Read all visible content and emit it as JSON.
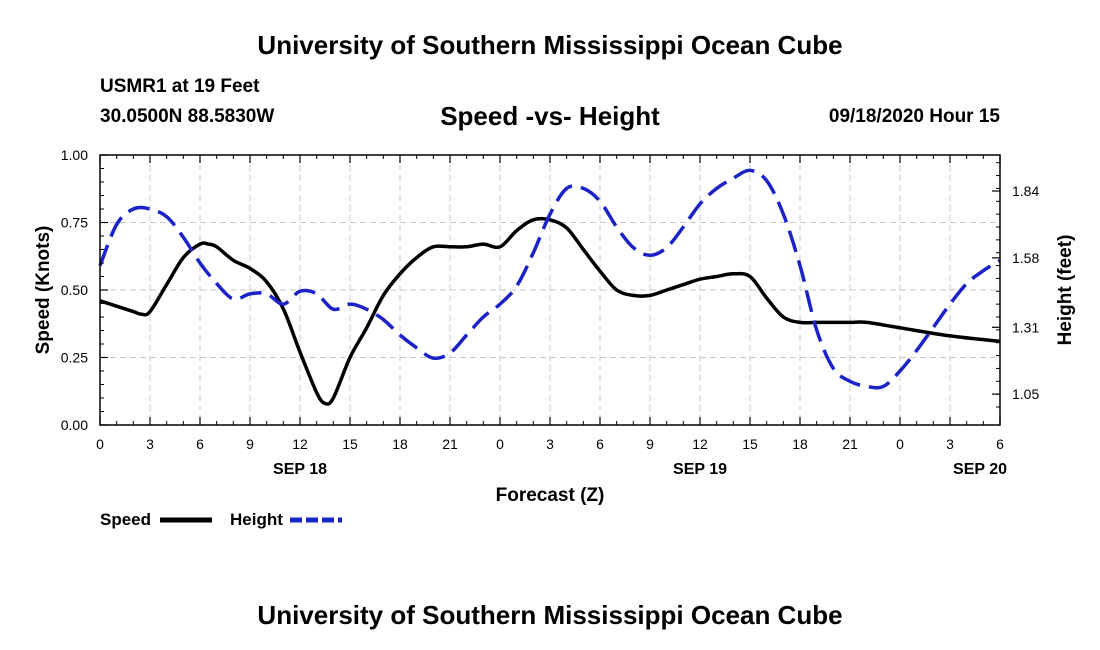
{
  "header": {
    "title": "University of Southern Mississippi Ocean Cube",
    "station": "USMR1 at 19 Feet",
    "coords": "30.0500N 88.5830W",
    "chart_title": "Speed -vs- Height",
    "datetime": "09/18/2020 Hour 15"
  },
  "footer": {
    "title": "University of Southern Mississippi Ocean Cube"
  },
  "chart_data": {
    "type": "line",
    "title": "Speed -vs- Height",
    "xlabel": "Forecast (Z)",
    "ylabel": "Speed (Knots)",
    "y2label": "Height (feet)",
    "x_range": [
      0,
      54
    ],
    "ylim": [
      0,
      1.0
    ],
    "y2lim": [
      0.93,
      1.98
    ],
    "x_ticks": [
      0,
      3,
      6,
      9,
      12,
      15,
      18,
      21,
      24,
      27,
      30,
      33,
      36,
      39,
      42,
      45,
      48,
      51,
      54
    ],
    "x_tick_labels": [
      "0",
      "3",
      "6",
      "9",
      "12",
      "15",
      "18",
      "21",
      "0",
      "3",
      "6",
      "9",
      "12",
      "15",
      "18",
      "21",
      "0",
      "3",
      "6"
    ],
    "date_labels": [
      {
        "x": 12,
        "label": "SEP 18"
      },
      {
        "x": 36,
        "label": "SEP 19"
      },
      {
        "x": 52.8,
        "label": "SEP 20"
      }
    ],
    "y_ticks": [
      0.0,
      0.25,
      0.5,
      0.75,
      1.0
    ],
    "y_tick_labels": [
      "0.00",
      "0.25",
      "0.50",
      "0.75",
      "1.00"
    ],
    "y2_ticks": [
      1.05,
      1.31,
      1.58,
      1.84
    ],
    "y2_tick_labels": [
      "1.05",
      "1.31",
      "1.58",
      "1.84"
    ],
    "grid": true,
    "legend": "bottom-left",
    "series": [
      {
        "name": "Speed",
        "axis": "left",
        "color": "#000000",
        "dash": "solid",
        "x": [
          0,
          1,
          2,
          2.5,
          3,
          4,
          5,
          6,
          6.5,
          7,
          8,
          9,
          10,
          11,
          12,
          13,
          13.5,
          14,
          15,
          16,
          17,
          18,
          19,
          20,
          21,
          22,
          23,
          24,
          25,
          26,
          27,
          28,
          29,
          30,
          31,
          32,
          33,
          34,
          35,
          36,
          37,
          38,
          39,
          40,
          41,
          42,
          43,
          44,
          45,
          46,
          48,
          51,
          54
        ],
        "values": [
          0.46,
          0.44,
          0.42,
          0.41,
          0.42,
          0.52,
          0.62,
          0.67,
          0.67,
          0.66,
          0.61,
          0.58,
          0.53,
          0.43,
          0.27,
          0.12,
          0.08,
          0.1,
          0.25,
          0.36,
          0.48,
          0.56,
          0.62,
          0.66,
          0.66,
          0.66,
          0.67,
          0.66,
          0.72,
          0.76,
          0.76,
          0.73,
          0.65,
          0.57,
          0.5,
          0.48,
          0.48,
          0.5,
          0.52,
          0.54,
          0.55,
          0.56,
          0.55,
          0.47,
          0.4,
          0.38,
          0.38,
          0.38,
          0.38,
          0.38,
          0.36,
          0.33,
          0.31
        ]
      },
      {
        "name": "Height",
        "axis": "right",
        "color": "#1a22c8",
        "dash": "dashed",
        "x": [
          0,
          1,
          2,
          3,
          4,
          5,
          6,
          7,
          8,
          9,
          10,
          11,
          12,
          13,
          14,
          15,
          16,
          17,
          18,
          19,
          20,
          21,
          22,
          23,
          24,
          25,
          26,
          27,
          28,
          29,
          30,
          31,
          32,
          33,
          34,
          35,
          36,
          37,
          38,
          39,
          40,
          41,
          42,
          43,
          44,
          45,
          46,
          47,
          48,
          49,
          50,
          51,
          52,
          53,
          54
        ],
        "values": [
          1.55,
          1.71,
          1.77,
          1.77,
          1.74,
          1.66,
          1.56,
          1.48,
          1.42,
          1.44,
          1.44,
          1.4,
          1.45,
          1.44,
          1.38,
          1.4,
          1.38,
          1.34,
          1.28,
          1.23,
          1.19,
          1.21,
          1.28,
          1.35,
          1.4,
          1.47,
          1.6,
          1.75,
          1.85,
          1.85,
          1.8,
          1.7,
          1.62,
          1.59,
          1.62,
          1.7,
          1.79,
          1.85,
          1.89,
          1.92,
          1.88,
          1.75,
          1.55,
          1.3,
          1.15,
          1.1,
          1.08,
          1.08,
          1.14,
          1.22,
          1.31,
          1.4,
          1.48,
          1.53,
          1.57
        ]
      }
    ]
  }
}
